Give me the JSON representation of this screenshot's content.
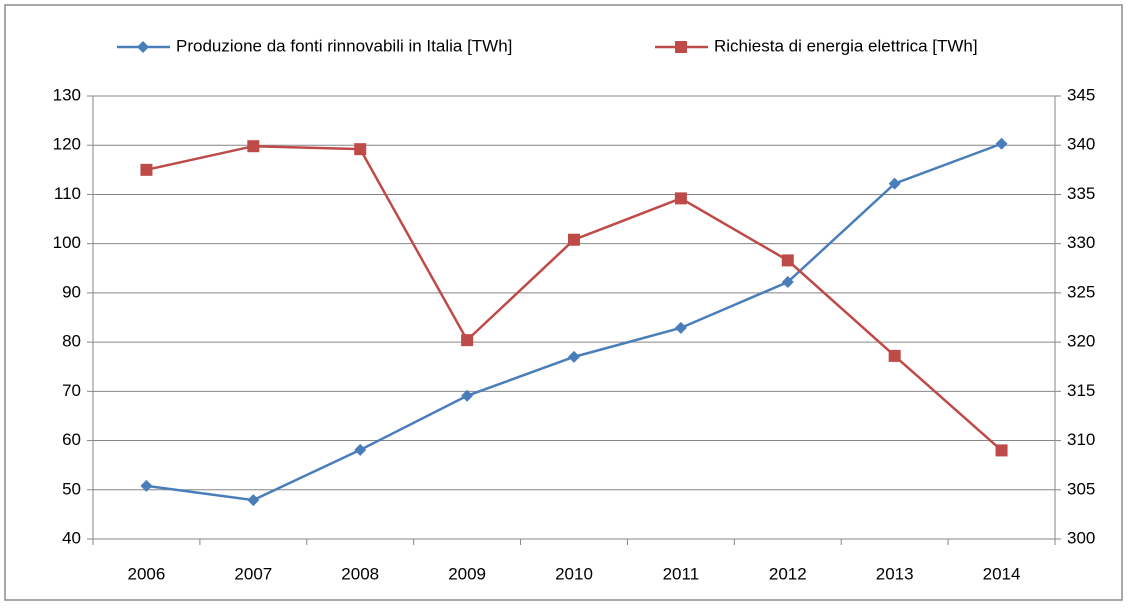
{
  "chart_data": {
    "type": "line",
    "categories": [
      "2006",
      "2007",
      "2008",
      "2009",
      "2010",
      "2011",
      "2012",
      "2013",
      "2014"
    ],
    "series": [
      {
        "name": "Produzione da fonti rinnovabili in Italia [TWh]",
        "color": "#4a7ebb",
        "marker": "diamond",
        "values": [
          50.8,
          47.9,
          58.1,
          69.1,
          77.0,
          82.9,
          92.2,
          112.2,
          120.3
        ]
      },
      {
        "name": "Richiesta di energia elettrica [TWh]",
        "color": "#be4b48",
        "marker": "square",
        "axis": "y2",
        "values": [
          337.5,
          339.9,
          339.6,
          320.2,
          330.4,
          334.6,
          328.3,
          318.6,
          309.0
        ]
      }
    ],
    "ylim": [
      40,
      130
    ],
    "yticks": [
      40,
      50,
      60,
      70,
      80,
      90,
      100,
      110,
      120,
      130
    ],
    "y2lim": [
      300,
      345
    ],
    "y2ticks": [
      300,
      305,
      310,
      315,
      320,
      325,
      330,
      335,
      340,
      345
    ],
    "grid": true,
    "legend": "top"
  }
}
